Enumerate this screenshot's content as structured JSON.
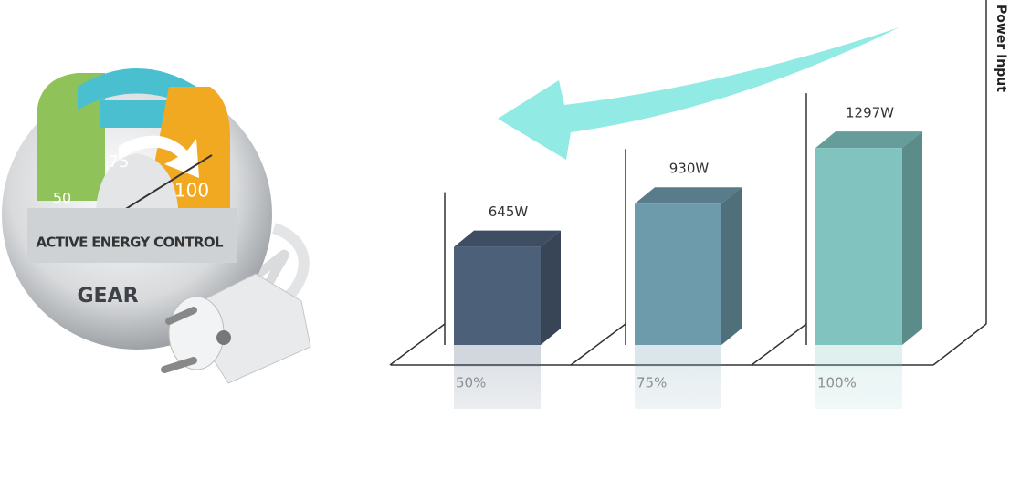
{
  "chart_data": {
    "type": "bar3d",
    "y_label": "Power Input",
    "categories": [
      "50%",
      "75%",
      "100%"
    ],
    "values": [
      645,
      930,
      1297
    ],
    "value_labels": [
      "645W",
      "930W",
      "1297W"
    ],
    "colors": [
      "#4d6079",
      "#6e9bab",
      "#80c3bf"
    ],
    "ylim": [
      0,
      1400
    ]
  },
  "gauge": {
    "labels": [
      "50",
      "75",
      "100"
    ],
    "title": "ACTIVE ENERGY CONTROL",
    "brand": "GEAR"
  }
}
